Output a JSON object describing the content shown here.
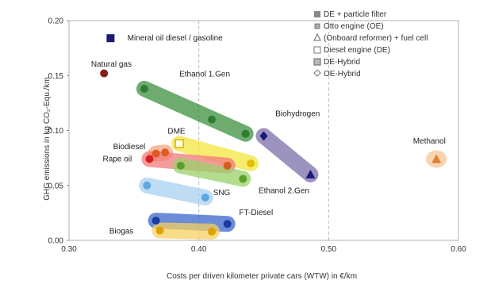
{
  "chart_data": {
    "type": "scatter",
    "xlabel": "Costs per driven kilometer private cars (WTW) in €/km",
    "ylabel": "GHG emissions in kg CO₂-Equ./km",
    "xlim": [
      0.3,
      0.6
    ],
    "ylim": [
      0.0,
      0.2
    ],
    "x_ticks": [
      "0.30",
      "0.40",
      "0.50",
      "0.60"
    ],
    "y_ticks": [
      "0.00",
      "0.05",
      "0.10",
      "0.15",
      "0.20"
    ],
    "grid": "dashed vertical lines at x ticks",
    "legend_position": "top-right",
    "legend": [
      {
        "label": "DE + particle filter",
        "marker": "square"
      },
      {
        "label": "Otto engine (OE)",
        "marker": "small-square"
      },
      {
        "label": "(Onboard reformer) + fuel cell",
        "marker": "triangle"
      },
      {
        "label": "Diesel engine (DE)",
        "marker": "open-square"
      },
      {
        "label": "DE-Hybrid",
        "marker": "striped-square"
      },
      {
        "label": "OE-Hybrid",
        "marker": "diamond"
      }
    ],
    "bands": [
      {
        "label": "Ethanol 1.Gen",
        "color": "#3d8f3d",
        "points": [
          {
            "x": 0.358,
            "y": 0.138,
            "color": "#2e7d32"
          },
          {
            "x": 0.41,
            "y": 0.11,
            "color": "#2e7d32"
          },
          {
            "x": 0.436,
            "y": 0.097,
            "color": "#2e7d32"
          }
        ]
      },
      {
        "label": "Biohydrogen",
        "color": "#7b6fa8",
        "points": [
          {
            "x": 0.45,
            "y": 0.095,
            "marker": "diamond",
            "color": "#1a1a7a"
          },
          {
            "x": 0.486,
            "y": 0.06,
            "marker": "triangle",
            "color": "#1a1a7a"
          }
        ]
      },
      {
        "label": "DME",
        "color": "#f2e640",
        "points": [
          {
            "x": 0.385,
            "y": 0.088,
            "marker": "open-square",
            "color": "#e0b000"
          },
          {
            "x": 0.44,
            "y": 0.07,
            "color": "#e0c000"
          }
        ]
      },
      {
        "label": "Biodiesel",
        "color": "#f4a582",
        "points": [
          {
            "x": 0.367,
            "y": 0.079,
            "color": "#e05a20"
          },
          {
            "x": 0.374,
            "y": 0.08,
            "color": "#e05a20"
          }
        ]
      },
      {
        "label": "Rape oil",
        "color": "#f07a7a",
        "points": [
          {
            "x": 0.362,
            "y": 0.074,
            "color": "#d62020"
          },
          {
            "x": 0.422,
            "y": 0.068,
            "color": "#d06020"
          }
        ]
      },
      {
        "label": "Ethanol 2.Gen",
        "color": "#9bd06a",
        "points": [
          {
            "x": 0.386,
            "y": 0.068,
            "color": "#5aa02c"
          },
          {
            "x": 0.434,
            "y": 0.056,
            "color": "#5aa02c"
          }
        ]
      },
      {
        "label": "SNG",
        "color": "#a8d0f0",
        "points": [
          {
            "x": 0.36,
            "y": 0.05,
            "color": "#5da8e0"
          },
          {
            "x": 0.405,
            "y": 0.039,
            "color": "#5da8e0"
          }
        ]
      },
      {
        "label": "FT-Diesel",
        "color": "#3a66c8",
        "points": [
          {
            "x": 0.367,
            "y": 0.018,
            "color": "#1a3aa0"
          },
          {
            "x": 0.422,
            "y": 0.015,
            "color": "#1a3aa0"
          }
        ]
      },
      {
        "label": "Biogas",
        "color": "#f5d060",
        "points": [
          {
            "x": 0.37,
            "y": 0.009,
            "color": "#e0a000"
          },
          {
            "x": 0.41,
            "y": 0.008,
            "color": "#e0a000"
          }
        ]
      },
      {
        "label": "Methanol",
        "color": "#f5b070",
        "points": [
          {
            "x": 0.583,
            "y": 0.074,
            "marker": "triangle",
            "color": "#e08030"
          }
        ]
      }
    ],
    "points": [
      {
        "label": "Mineral oil diesel / gasoline",
        "x": 0.332,
        "y": 0.184,
        "marker": "square",
        "color": "#1a1a7a"
      },
      {
        "label": "Natural gas",
        "x": 0.327,
        "y": 0.152,
        "marker": "circle",
        "color": "#8b1a1a"
      }
    ]
  }
}
